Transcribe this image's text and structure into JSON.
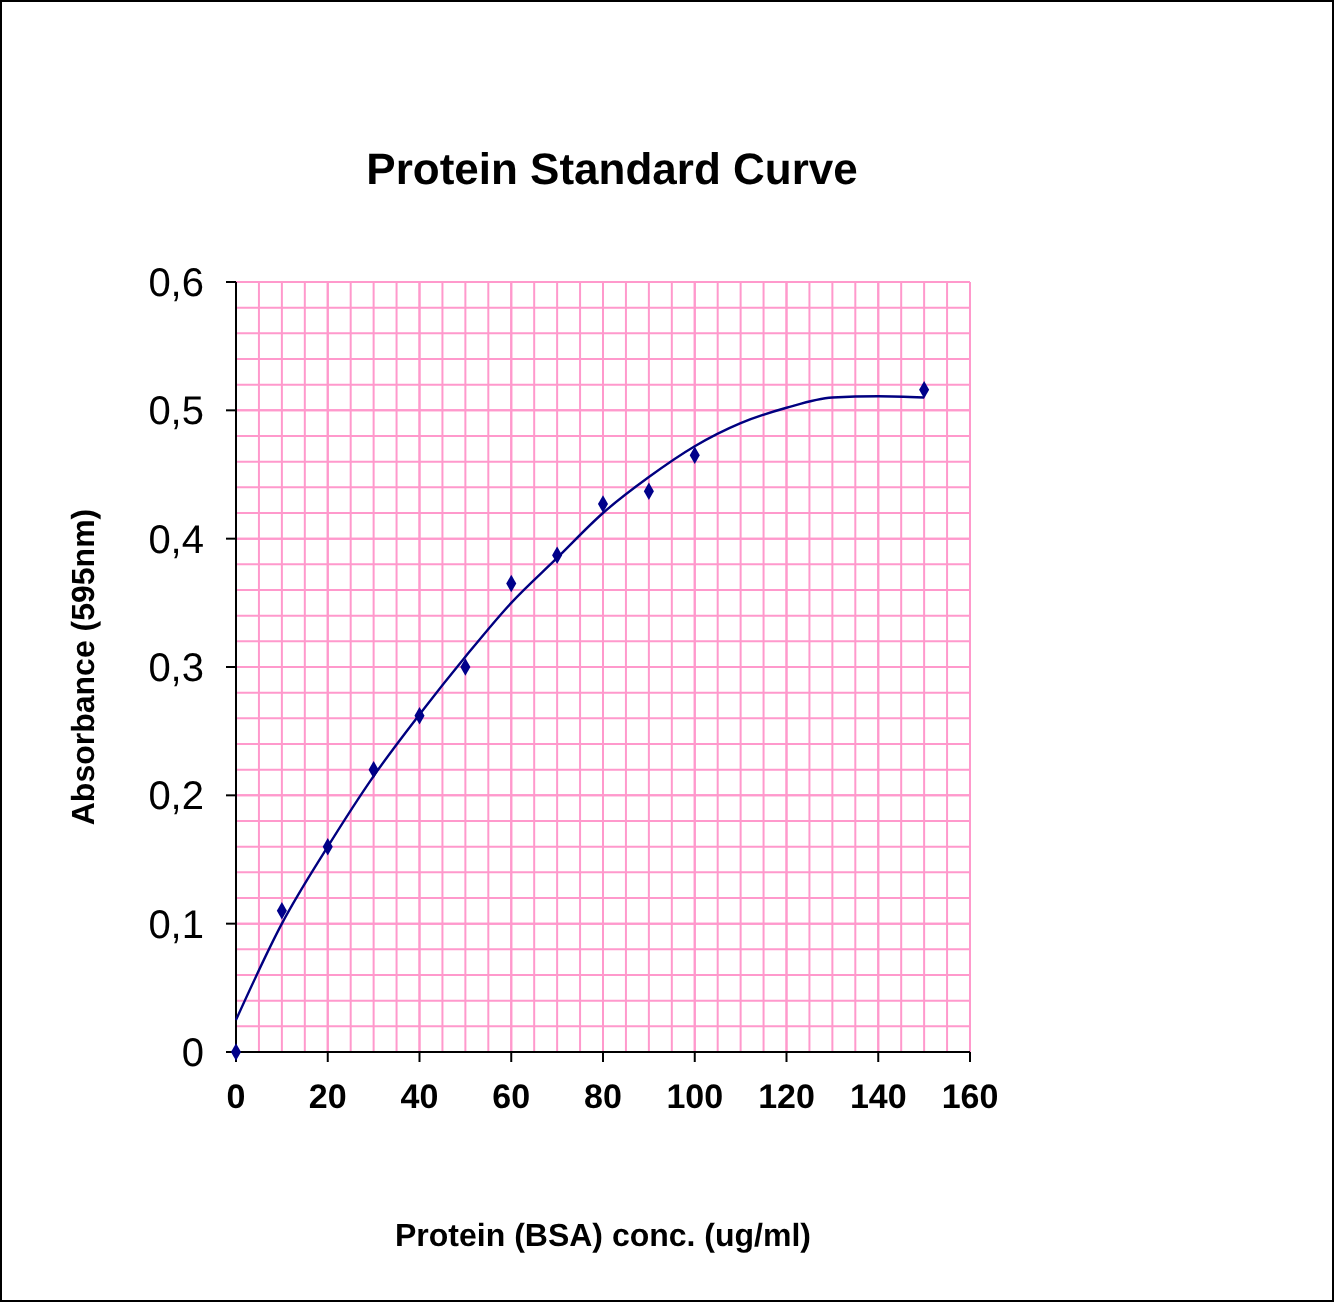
{
  "chart_data": {
    "type": "scatter",
    "title": "Protein Standard Curve",
    "xlabel": "Protein (BSA) conc. (ug/ml)",
    "ylabel": "Absorbance (595nm)",
    "xlim": [
      0,
      160
    ],
    "xticks": [
      0,
      20,
      40,
      60,
      80,
      100,
      120,
      140,
      160
    ],
    "ylim": [
      0,
      0.6
    ],
    "yticks": [
      0,
      {
        "value": 0.1,
        "label": "0,1"
      },
      {
        "value": 0.2,
        "label": "0,2"
      },
      {
        "value": 0.3,
        "label": "0,3"
      },
      {
        "value": 0.4,
        "label": "0,4"
      },
      {
        "value": 0.5,
        "label": "0,5"
      },
      {
        "value": 0.6,
        "label": "0,6"
      }
    ],
    "grid": true,
    "series": [
      {
        "marker": "diamond",
        "color": "#00008b",
        "x": [
          0,
          10,
          20,
          30,
          40,
          50,
          60,
          70,
          80,
          90,
          100,
          150
        ],
        "values": [
          0,
          0.11,
          0.16,
          0.22,
          0.262,
          0.3,
          0.365,
          0.387,
          0.427,
          0.437,
          0.465,
          0.516
        ]
      },
      {
        "type": "line",
        "color": "#000080",
        "line_style": "solid",
        "x": [
          0,
          10,
          20,
          30,
          40,
          50,
          60,
          70,
          80,
          90,
          100,
          110,
          120,
          130,
          140,
          150
        ],
        "values": [
          0.025,
          0.1,
          0.16,
          0.215,
          0.263,
          0.308,
          0.35,
          0.385,
          0.42,
          0.448,
          0.472,
          0.49,
          0.502,
          0.51,
          0.511,
          0.51
        ]
      }
    ]
  }
}
